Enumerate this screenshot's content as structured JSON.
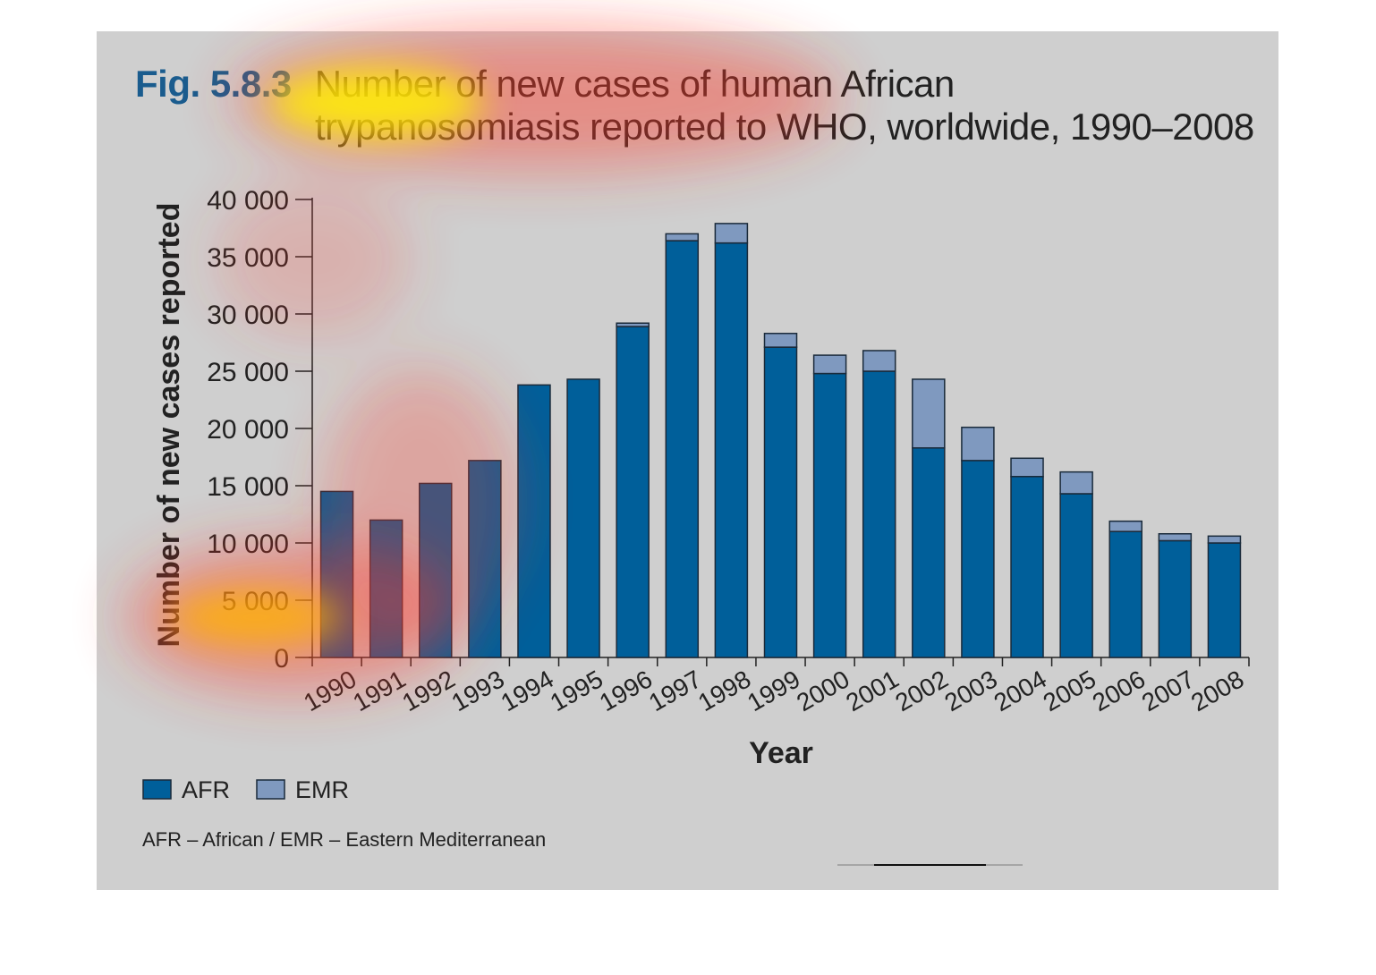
{
  "figure": {
    "label": "Fig. 5.8.3",
    "title_line1": "Number of new cases of human African",
    "title_line2": "trypanosomiasis reported to WHO, worldwide, 1990–2008",
    "note": "AFR – African / EMR – Eastern Mediterranean"
  },
  "colors": {
    "panel_bg": "#cfcfcf",
    "afr": "#005f9a",
    "emr": "#7f99bf",
    "title_accent": "#1a5c8e"
  },
  "chart_data": {
    "type": "bar",
    "stacked": true,
    "title": "Number of new cases of human African trypanosomiasis reported to WHO, worldwide, 1990–2008",
    "xlabel": "Year",
    "ylabel": "Number of new cases reported",
    "ylim": [
      0,
      40000
    ],
    "yticks": [
      0,
      5000,
      10000,
      15000,
      20000,
      25000,
      30000,
      35000,
      40000
    ],
    "ytick_labels": [
      "0",
      "5 000",
      "10 000",
      "15 000",
      "20 000",
      "25 000",
      "30 000",
      "35 000",
      "40 000"
    ],
    "categories": [
      "1990",
      "1991",
      "1992",
      "1993",
      "1994",
      "1995",
      "1996",
      "1997",
      "1998",
      "1999",
      "2000",
      "2001",
      "2002",
      "2003",
      "2004",
      "2005",
      "2006",
      "2007",
      "2008"
    ],
    "series": [
      {
        "name": "AFR",
        "values": [
          14500,
          12000,
          15200,
          17200,
          23800,
          24300,
          28900,
          36400,
          36200,
          27100,
          24800,
          25000,
          18300,
          17200,
          15800,
          14300,
          11000,
          10200,
          10000
        ]
      },
      {
        "name": "EMR",
        "values": [
          0,
          0,
          0,
          0,
          0,
          0,
          300,
          600,
          1700,
          1200,
          1600,
          1800,
          6000,
          2900,
          1600,
          1900,
          900,
          600,
          600
        ]
      }
    ],
    "legend": {
      "position": "bottom-left",
      "entries": [
        "AFR",
        "EMR"
      ]
    },
    "grid": false
  }
}
